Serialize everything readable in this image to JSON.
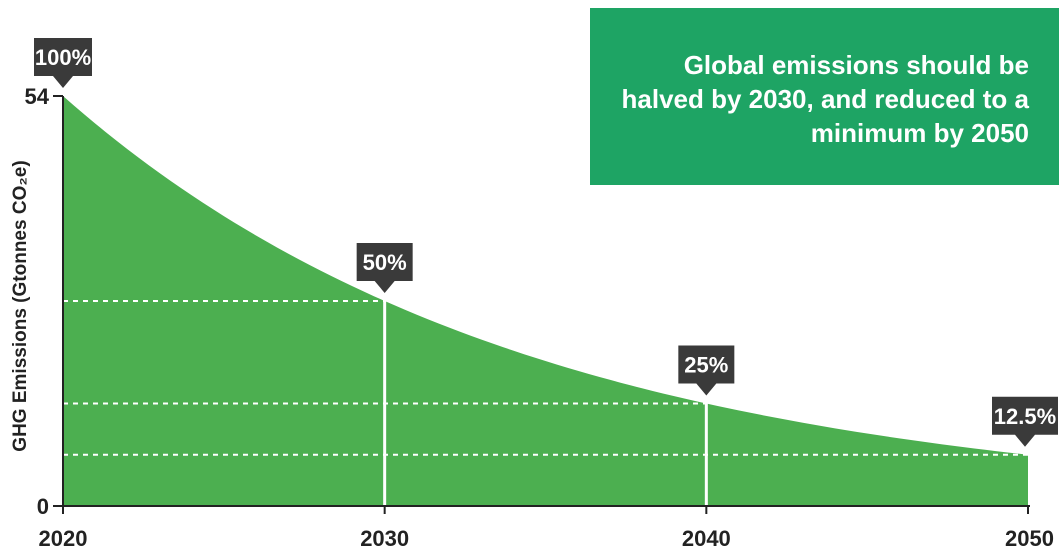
{
  "note": "Global emissions should be halved by 2030, and reduced to a minimum by 2050",
  "colors": {
    "area": "#4caf50",
    "note_bg": "#1ea464",
    "callout_bg": "#3a3a3a",
    "axis": "#222222",
    "guide": "#ffffff"
  },
  "chart_data": {
    "type": "area",
    "title": "",
    "ylabel": "GHG Emissions (Gtonnes CO₂e)",
    "xlabel": "",
    "x": [
      2020,
      2030,
      2040,
      2050
    ],
    "values": [
      54,
      27,
      13.5,
      6.75
    ],
    "xlim": [
      2020,
      2050
    ],
    "ylim": [
      0,
      54
    ],
    "x_ticks": [
      "2020",
      "2030",
      "2040",
      "2050"
    ],
    "y_ticks": [
      "0",
      "54"
    ],
    "annotations": [
      "100%",
      "50%",
      "25%",
      "12.5%"
    ],
    "grid": false,
    "guides": "dashed white horizontal lines at each reduction level; solid white vertical lines at 2030 and 2040"
  }
}
